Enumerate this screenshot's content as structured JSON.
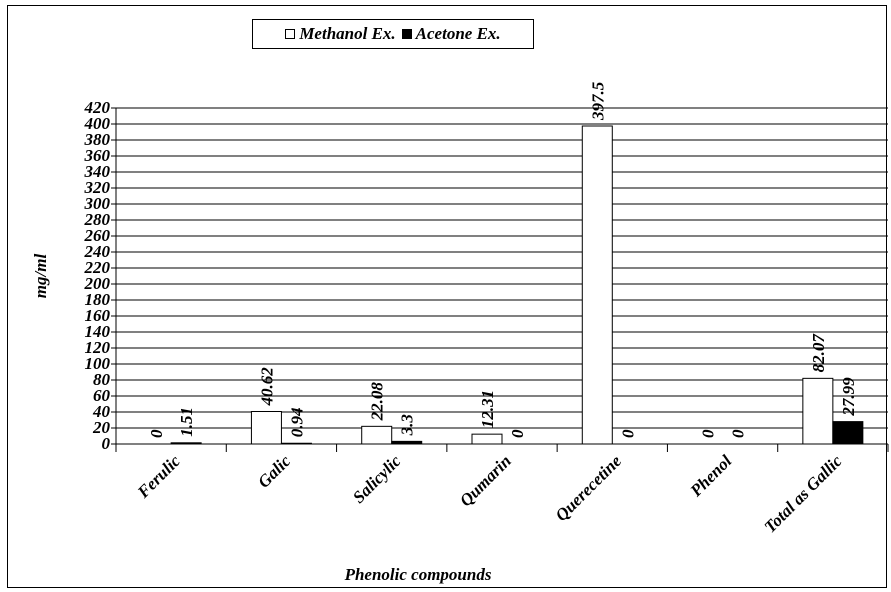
{
  "chart_data": {
    "type": "bar",
    "categories": [
      "Ferulic",
      "Galic",
      "Salicylic",
      "Qumarin",
      "Querecetine",
      "Phenol",
      "Total as Gallic"
    ],
    "series": [
      {
        "name": "Methanol Ex.",
        "values": [
          0,
          40.62,
          22.08,
          12.31,
          397.5,
          0,
          82.07
        ],
        "labels": [
          "0",
          "40.62",
          "22.08",
          "12.31",
          "397.5",
          "0",
          "82.07"
        ],
        "color": "#ffffff"
      },
      {
        "name": "Acetone Ex.",
        "values": [
          1.51,
          0.94,
          3.3,
          0,
          0,
          0,
          27.99
        ],
        "labels": [
          "1.51",
          "0.94",
          "3.3",
          "0",
          "0",
          "0",
          "27.99"
        ],
        "color": "#000000"
      }
    ],
    "ylabel": "mg/ml",
    "xlabel": "Phenolic compounds",
    "ylim": [
      0,
      420
    ],
    "yticks": [
      0,
      20,
      40,
      60,
      80,
      100,
      120,
      140,
      160,
      180,
      200,
      220,
      240,
      260,
      280,
      300,
      320,
      340,
      360,
      380,
      400,
      420
    ],
    "grid": true,
    "legend_position": "top-center"
  }
}
